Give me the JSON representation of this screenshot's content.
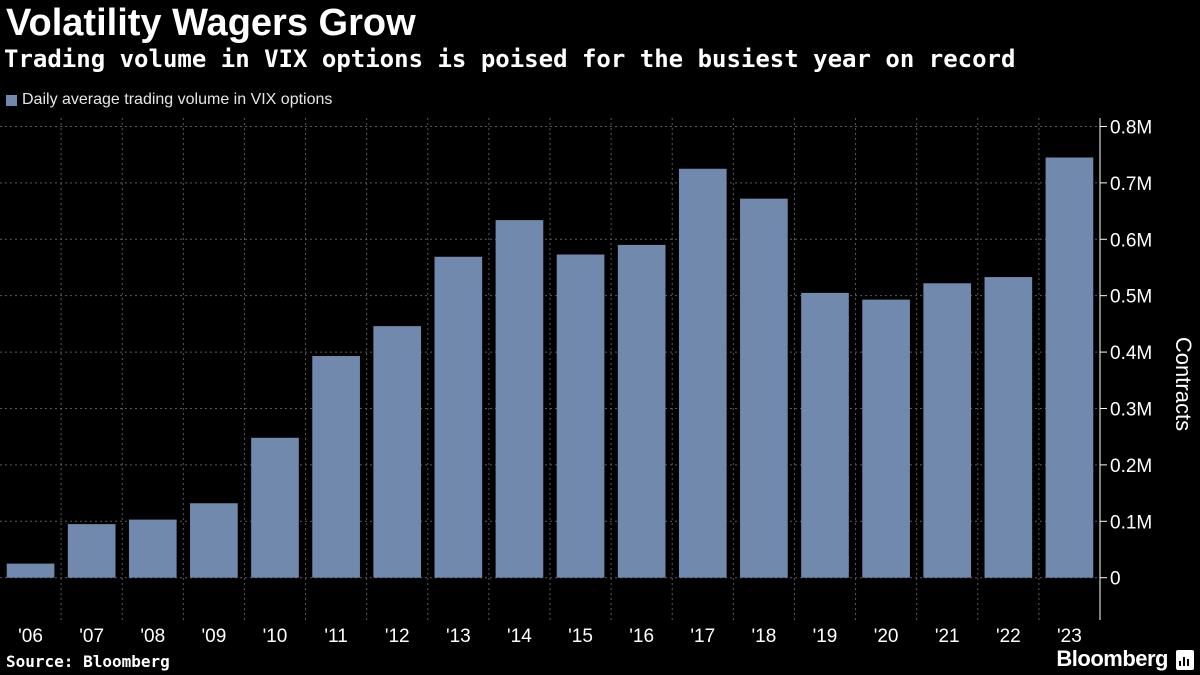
{
  "header": {
    "title": "Volatility Wagers Grow",
    "subtitle": "Trading volume in VIX options is poised for the busiest year on record"
  },
  "footer": {
    "source": "Source: Bloomberg",
    "brand": "Bloomberg"
  },
  "colors": {
    "background": "#000000",
    "bar": "#7089ad",
    "grid": "#5a5a5a",
    "text": "#ffffff"
  },
  "chart_data": {
    "type": "bar",
    "title": "Volatility Wagers Grow",
    "subtitle": "Trading volume in VIX options is poised for the busiest year on record",
    "xlabel": "",
    "ylabel": "Contracts",
    "categories": [
      "'06",
      "'07",
      "'08",
      "'09",
      "'10",
      "'11",
      "'12",
      "'13",
      "'14",
      "'15",
      "'16",
      "'17",
      "'18",
      "'19",
      "'20",
      "'21",
      "'22",
      "'23"
    ],
    "series": [
      {
        "name": "Daily average trading volume in VIX options",
        "values": [
          25000,
          95000,
          103000,
          132000,
          248000,
          393000,
          446000,
          569000,
          634000,
          573000,
          590000,
          725000,
          672000,
          505000,
          493000,
          522000,
          533000,
          745000
        ]
      }
    ],
    "ylim": [
      -75000,
      815000
    ],
    "yticks": [
      0,
      100000,
      200000,
      300000,
      400000,
      500000,
      600000,
      700000,
      800000
    ],
    "ytick_labels": [
      "0",
      "0.1M",
      "0.2M",
      "0.3M",
      "0.4M",
      "0.5M",
      "0.6M",
      "0.7M",
      "0.8M"
    ],
    "y_axis_position": "right",
    "legend_position": "top-left",
    "grid": true
  }
}
